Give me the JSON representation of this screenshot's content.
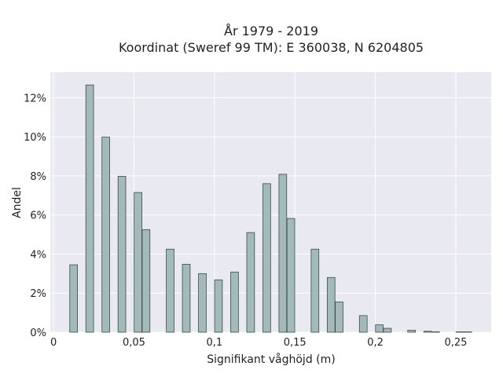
{
  "chart_data": {
    "type": "bar",
    "title": "År 1979 - 2019",
    "subtitle": "Koordinat (Sweref 99 TM): E 360038, N 6204805",
    "xlabel": "Signifikant våghöjd (m)",
    "ylabel": "Andel",
    "xlim": [
      -0.002,
      0.272
    ],
    "ylim": [
      0,
      13.3
    ],
    "x_ticks": [
      0,
      0.05,
      0.1,
      0.15,
      0.2,
      0.25
    ],
    "x_tick_labels": [
      "0",
      "0,05",
      "0,1",
      "0,15",
      "0,2",
      "0,25"
    ],
    "y_ticks": [
      0,
      2,
      4,
      6,
      8,
      10,
      12
    ],
    "y_tick_labels": [
      "0%",
      "2%",
      "4%",
      "6%",
      "8%",
      "10%",
      "12%"
    ],
    "bar_width": 0.0048,
    "grid": true,
    "colors": {
      "plot_background": "#e9e9f1",
      "grid": "#ffffff",
      "bar_fill": "#a3baba",
      "bar_stroke": "#3d4a4a",
      "text": "#222222"
    },
    "bars": [
      {
        "x": 0.0125,
        "value": 3.45
      },
      {
        "x": 0.0225,
        "value": 12.65
      },
      {
        "x": 0.0325,
        "value": 9.98
      },
      {
        "x": 0.0425,
        "value": 7.98
      },
      {
        "x": 0.0525,
        "value": 7.15
      },
      {
        "x": 0.0575,
        "value": 5.25
      },
      {
        "x": 0.0725,
        "value": 4.25
      },
      {
        "x": 0.0825,
        "value": 3.48
      },
      {
        "x": 0.0925,
        "value": 3.0
      },
      {
        "x": 0.1025,
        "value": 2.68
      },
      {
        "x": 0.1125,
        "value": 3.08
      },
      {
        "x": 0.1225,
        "value": 5.1
      },
      {
        "x": 0.1325,
        "value": 7.6
      },
      {
        "x": 0.1425,
        "value": 8.08
      },
      {
        "x": 0.1475,
        "value": 5.82
      },
      {
        "x": 0.1625,
        "value": 4.25
      },
      {
        "x": 0.1725,
        "value": 2.8
      },
      {
        "x": 0.1775,
        "value": 1.55
      },
      {
        "x": 0.1925,
        "value": 0.85
      },
      {
        "x": 0.2025,
        "value": 0.38
      },
      {
        "x": 0.2075,
        "value": 0.2
      },
      {
        "x": 0.2225,
        "value": 0.1
      },
      {
        "x": 0.2325,
        "value": 0.05
      },
      {
        "x": 0.2375,
        "value": 0.02
      },
      {
        "x": 0.2525,
        "value": 0.02
      },
      {
        "x": 0.2575,
        "value": 0.02
      }
    ]
  }
}
